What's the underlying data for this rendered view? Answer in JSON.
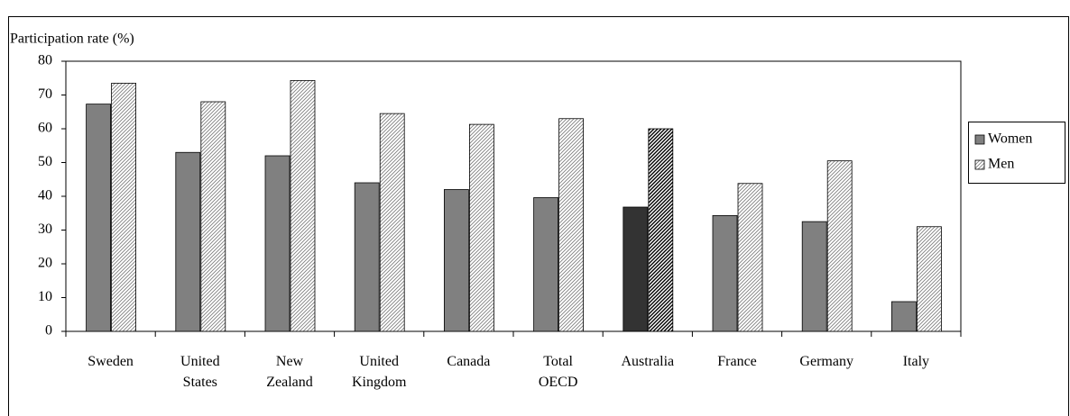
{
  "chart_data": {
    "type": "bar",
    "y_label": "Participation rate (%)",
    "categories": [
      "Sweden",
      "United States",
      "New Zealand",
      "United Kingdom",
      "Canada",
      "Total OECD",
      "Australia",
      "France",
      "Germany",
      "Italy"
    ],
    "series": [
      {
        "name": "Women",
        "color": "#808080",
        "colors": [
          "#808080",
          "#808080",
          "#808080",
          "#808080",
          "#808080",
          "#808080",
          "#333333",
          "#808080",
          "#808080",
          "#808080"
        ],
        "values": [
          67.3,
          53,
          52,
          44,
          42,
          39.6,
          36.8,
          34.3,
          32.5,
          8.8
        ]
      },
      {
        "name": "Men",
        "color": "#808080",
        "pattern": "hatch",
        "colors": [
          "#808080",
          "#808080",
          "#808080",
          "#808080",
          "#808080",
          "#808080",
          "#000000",
          "#808080",
          "#808080",
          "#808080"
        ],
        "values": [
          73.5,
          68,
          74.3,
          64.5,
          61.3,
          63,
          60,
          43.8,
          50.5,
          31
        ]
      }
    ],
    "ylim": [
      0,
      80
    ],
    "yticks": [
      0,
      10,
      20,
      30,
      40,
      50,
      60,
      70,
      80
    ],
    "legend": "right"
  }
}
